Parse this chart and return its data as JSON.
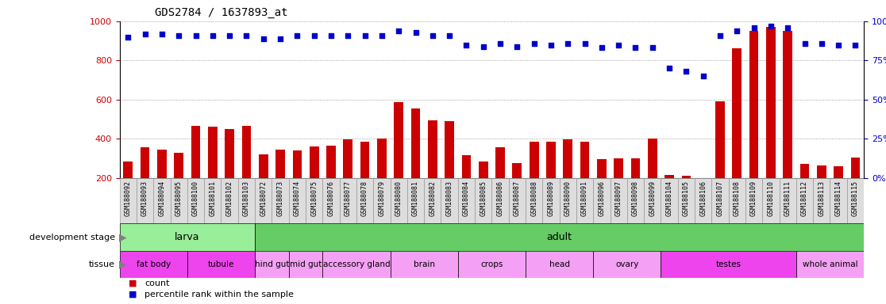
{
  "title": "GDS2784 / 1637893_at",
  "samples": [
    "GSM188092",
    "GSM188093",
    "GSM188094",
    "GSM188095",
    "GSM188100",
    "GSM188101",
    "GSM188102",
    "GSM188103",
    "GSM188072",
    "GSM188073",
    "GSM188074",
    "GSM188075",
    "GSM188076",
    "GSM188077",
    "GSM188078",
    "GSM188079",
    "GSM188080",
    "GSM188081",
    "GSM188082",
    "GSM188083",
    "GSM188084",
    "GSM188085",
    "GSM188086",
    "GSM188087",
    "GSM188088",
    "GSM188089",
    "GSM188090",
    "GSM188091",
    "GSM188096",
    "GSM188097",
    "GSM188098",
    "GSM188099",
    "GSM188104",
    "GSM188105",
    "GSM188106",
    "GSM188107",
    "GSM188108",
    "GSM188109",
    "GSM188110",
    "GSM188111",
    "GSM188112",
    "GSM188113",
    "GSM188114",
    "GSM188115"
  ],
  "counts": [
    285,
    355,
    345,
    330,
    465,
    460,
    450,
    465,
    320,
    345,
    340,
    360,
    365,
    395,
    385,
    400,
    585,
    555,
    495,
    490,
    315,
    285,
    355,
    275,
    385,
    385,
    395,
    385,
    295,
    300,
    300,
    400,
    215,
    210,
    200,
    590,
    860,
    950,
    970,
    950,
    270,
    265,
    260,
    305
  ],
  "percentiles": [
    90,
    92,
    92,
    91,
    91,
    91,
    91,
    91,
    89,
    89,
    91,
    91,
    91,
    91,
    91,
    91,
    94,
    93,
    91,
    91,
    85,
    84,
    86,
    84,
    86,
    85,
    86,
    86,
    83,
    85,
    83,
    83,
    70,
    68,
    65,
    91,
    94,
    96,
    97,
    96,
    86,
    86,
    85,
    85
  ],
  "bar_color": "#cc0000",
  "dot_color": "#0000cc",
  "ylim_left": [
    200,
    1000
  ],
  "ylim_right": [
    0,
    100
  ],
  "yticks_left": [
    200,
    400,
    600,
    800,
    1000
  ],
  "yticks_right": [
    0,
    25,
    50,
    75,
    100
  ],
  "dev_stages": [
    {
      "name": "larva",
      "start": 0,
      "end": 8,
      "color": "#99ee99"
    },
    {
      "name": "adult",
      "start": 8,
      "end": 44,
      "color": "#66cc66"
    }
  ],
  "tissues": [
    {
      "name": "fat body",
      "start": 0,
      "end": 4,
      "color": "#ee44ee"
    },
    {
      "name": "tubule",
      "start": 4,
      "end": 8,
      "color": "#ee44ee"
    },
    {
      "name": "hind gut",
      "start": 8,
      "end": 10,
      "color": "#f4a0f4"
    },
    {
      "name": "mid gut",
      "start": 10,
      "end": 12,
      "color": "#f4a0f4"
    },
    {
      "name": "accessory gland",
      "start": 12,
      "end": 16,
      "color": "#f4a0f4"
    },
    {
      "name": "brain",
      "start": 16,
      "end": 20,
      "color": "#f4a0f4"
    },
    {
      "name": "crops",
      "start": 20,
      "end": 24,
      "color": "#f4a0f4"
    },
    {
      "name": "head",
      "start": 24,
      "end": 28,
      "color": "#f4a0f4"
    },
    {
      "name": "ovary",
      "start": 28,
      "end": 32,
      "color": "#f4a0f4"
    },
    {
      "name": "testes",
      "start": 32,
      "end": 40,
      "color": "#ee44ee"
    },
    {
      "name": "whole animal",
      "start": 40,
      "end": 44,
      "color": "#f4a0f4"
    }
  ],
  "bg_color": "#ffffff",
  "grid_color": "#888888",
  "label_bg": "#dddddd"
}
